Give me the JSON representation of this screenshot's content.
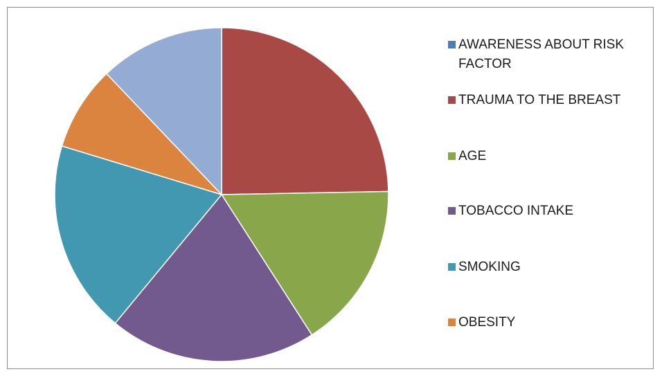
{
  "chart_data": {
    "type": "pie",
    "title": "",
    "slices": [
      {
        "label": "AWARENESS ABOUT RISK FACTOR",
        "value": 0,
        "color": "#4a7ebb"
      },
      {
        "label": "TRAUMA TO THE BREAST",
        "value": 24.7,
        "color": "#a84946"
      },
      {
        "label": "AGE",
        "value": 16.2,
        "color": "#8aa64b"
      },
      {
        "label": "TOBACCO INTAKE",
        "value": 20.1,
        "color": "#725a8f"
      },
      {
        "label": "SMOKING",
        "value": 18.7,
        "color": "#4198b0"
      },
      {
        "label": "OBESITY",
        "value": 8.2,
        "color": "#da8440"
      },
      {
        "label": "",
        "value": 12.1,
        "color": "#94abd3"
      }
    ],
    "legend_position": "right"
  }
}
